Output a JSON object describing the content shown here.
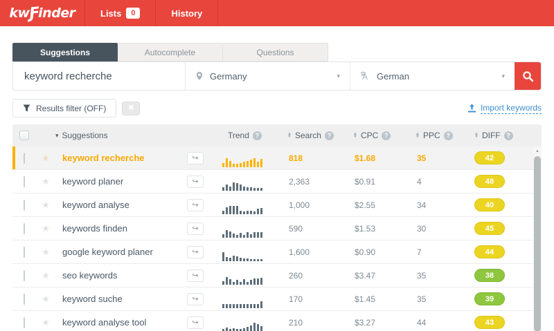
{
  "topbar": {
    "logo_kw": "kw",
    "logo_mark": "Ƒ",
    "logo_inder": "inder",
    "lists_label": "Lists",
    "lists_count": "0",
    "history_label": "History"
  },
  "tabs": [
    {
      "label": "Suggestions",
      "active": true
    },
    {
      "label": "Autocomplete",
      "active": false
    },
    {
      "label": "Questions",
      "active": false
    }
  ],
  "search": {
    "keyword_value": "keyword recherche",
    "location_value": "Germany",
    "language_value": "German"
  },
  "toolbar": {
    "results_filter_label": "Results filter (OFF)",
    "clear_icon_glyph": "✖",
    "import_keywords_label": "Import keywords"
  },
  "table": {
    "headers": {
      "suggestions": "Suggestions",
      "trend": "Trend",
      "search": "Search",
      "cpc": "CPC",
      "ppc": "PPC",
      "diff": "DIFF"
    },
    "rows": [
      {
        "keyword": "keyword recherche",
        "search": "818",
        "cpc": "$1.68",
        "ppc": "35",
        "diff": "42",
        "diff_level": "yellow",
        "highlighted": true,
        "trend": [
          6,
          13,
          9,
          5,
          5,
          6,
          8,
          9,
          11,
          13,
          8,
          12
        ]
      },
      {
        "keyword": "keyword planer",
        "search": "2,363",
        "cpc": "$0.91",
        "ppc": "4",
        "diff": "48",
        "diff_level": "yellow",
        "highlighted": false,
        "trend": [
          5,
          9,
          6,
          12,
          11,
          9,
          6,
          5,
          5,
          4,
          4,
          4
        ]
      },
      {
        "keyword": "keyword analyse",
        "search": "1,000",
        "cpc": "$2.55",
        "ppc": "34",
        "diff": "40",
        "diff_level": "yellow",
        "highlighted": false,
        "trend": [
          5,
          10,
          12,
          12,
          12,
          5,
          4,
          5,
          5,
          4,
          8,
          9
        ]
      },
      {
        "keyword": "keywords finden",
        "search": "590",
        "cpc": "$1.53",
        "ppc": "30",
        "diff": "45",
        "diff_level": "yellow",
        "highlighted": false,
        "trend": [
          5,
          11,
          9,
          6,
          4,
          7,
          4,
          8,
          5,
          8,
          8,
          8
        ]
      },
      {
        "keyword": "google keyword planer",
        "search": "1,600",
        "cpc": "$0.90",
        "ppc": "7",
        "diff": "44",
        "diff_level": "yellow",
        "highlighted": false,
        "trend": [
          13,
          6,
          5,
          8,
          7,
          5,
          4,
          4,
          3,
          3,
          3,
          3
        ]
      },
      {
        "keyword": "seo keywords",
        "search": "260",
        "cpc": "$3.47",
        "ppc": "35",
        "diff": "38",
        "diff_level": "green",
        "highlighted": false,
        "trend": [
          5,
          11,
          8,
          4,
          7,
          4,
          8,
          4,
          7,
          9,
          9,
          10
        ]
      },
      {
        "keyword": "keyword suche",
        "search": "170",
        "cpc": "$1.45",
        "ppc": "35",
        "diff": "39",
        "diff_level": "green",
        "highlighted": false,
        "trend": [
          6,
          6,
          6,
          6,
          6,
          6,
          6,
          6,
          6,
          6,
          6,
          10
        ]
      },
      {
        "keyword": "keyword analyse tool",
        "search": "210",
        "cpc": "$3.27",
        "ppc": "44",
        "diff": "43",
        "diff_level": "yellow",
        "highlighted": false,
        "trend": [
          4,
          6,
          4,
          5,
          4,
          4,
          5,
          7,
          9,
          13,
          11,
          8
        ]
      }
    ]
  },
  "icons": {
    "help_glyph": "?",
    "sort_up_glyph": "▲",
    "sort_down_glyph": "▼",
    "sort_desc_glyph": "▾",
    "dropdown_caret_glyph": "▾",
    "star_glyph": "★",
    "open_arrow_glyph": "↪",
    "scroll_up_glyph": "▲"
  },
  "colors": {
    "brand_red": "#e8463d",
    "dark_slate": "#47545e",
    "accent_orange": "#f9a800",
    "badge_yellow": "#ecd522",
    "badge_green": "#8fc640",
    "link_blue": "#3d8fd1"
  }
}
